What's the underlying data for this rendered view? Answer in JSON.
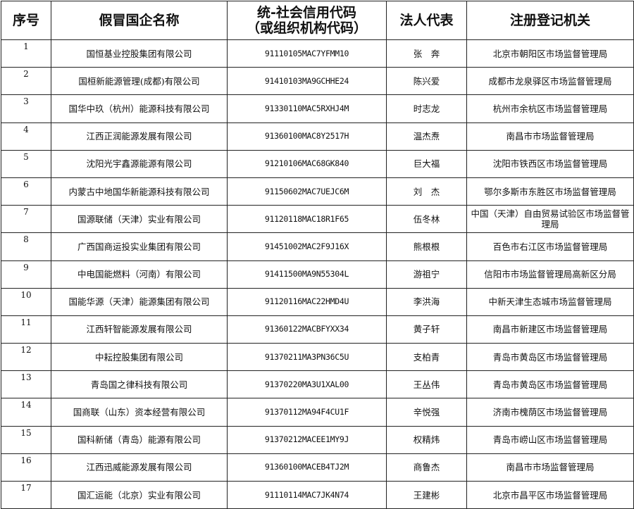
{
  "headers": {
    "seq": "序号",
    "name": "假冒国企名称",
    "code_line1": "统-社会信用代码",
    "code_line2": "（或组织机构代码）",
    "rep": "法人代表",
    "authority": "注册登记机关"
  },
  "rows": [
    {
      "no": "1",
      "name": "国恒基业控股集团有限公司",
      "code": "91110105MAC7YFMM10",
      "rep": "张　奔",
      "authority": "北京市朝阳区市场监督管理局"
    },
    {
      "no": "2",
      "name": "国桓新能源管理(成都)有限公司",
      "code": "91410103MA9GCHHE24",
      "rep": "陈兴爱",
      "authority": "成都市龙泉驿区市场监督管理局"
    },
    {
      "no": "3",
      "name": "国华中玖（杭州）能源科技有限公司",
      "code": "91330110MAC5RXHJ4M",
      "rep": "时志龙",
      "authority": "杭州市余杭区市场监督管理局"
    },
    {
      "no": "4",
      "name": "江西正润能源发展有限公司",
      "code": "91360100MAC8Y2517H",
      "rep": "温杰焘",
      "authority": "南昌市市场监督管理局"
    },
    {
      "no": "5",
      "name": "沈阳光宇鑫源能源有限公司",
      "code": "91210106MAC68GK840",
      "rep": "巨大福",
      "authority": "沈阳市铁西区市场监督管理局"
    },
    {
      "no": "6",
      "name": "内蒙古中地国华新能源科技有限公司",
      "code": "91150602MAC7UEJC6M",
      "rep": "刘　杰",
      "authority": "鄂尔多斯市东胜区市场监督管理局"
    },
    {
      "no": "7",
      "name": "国源联储（天津）实业有限公司",
      "code": "91120118MAC18R1F65",
      "rep": "伍冬林",
      "authority": "中国（天津）自由贸易试验区市场监督管理局"
    },
    {
      "no": "8",
      "name": "广西国商运投实业集团有限公司",
      "code": "91451002MAC2F9J16X",
      "rep": "熊根根",
      "authority": "百色市右江区市场监督管理局"
    },
    {
      "no": "9",
      "name": "中电国能燃料（河南）有限公司",
      "code": "91411500MA9N55304L",
      "rep": "游祖宁",
      "authority": "信阳市市场监督管理局高新区分局"
    },
    {
      "no": "10",
      "name": "国能华源（天津）能源集团有限公司",
      "code": "91120116MAC22HMD4U",
      "rep": "李洪海",
      "authority": "中新天津生态城市场监督管理局"
    },
    {
      "no": "11",
      "name": "江西轩智能源发展有限公司",
      "code": "91360122MACBFYXX34",
      "rep": "黄子轩",
      "authority": "南昌市新建区市场监督管理局"
    },
    {
      "no": "12",
      "name": "中耘控股集团有限公司",
      "code": "91370211MA3PN36C5U",
      "rep": "支柏青",
      "authority": "青岛市黄岛区市场监督管理局"
    },
    {
      "no": "13",
      "name": "青岛国之律科技有限公司",
      "code": "91370220MA3U1XAL00",
      "rep": "王丛伟",
      "authority": "青岛市黄岛区市场监督管理局"
    },
    {
      "no": "14",
      "name": "国商联（山东）资本经营有限公司",
      "code": "91370112MA94F4CU1F",
      "rep": "辛悦强",
      "authority": "济南市槐荫区市场监督管理局"
    },
    {
      "no": "15",
      "name": "国科新储（青岛）能源有限公司",
      "code": "91370212MACEE1MY9J",
      "rep": "权精炜",
      "authority": "青岛市崂山区市场监督管理局"
    },
    {
      "no": "16",
      "name": "江西迅威能源发展有限公司",
      "code": "91360100MACEB4TJ2M",
      "rep": "商鲁杰",
      "authority": "南昌市市场监督管理局"
    },
    {
      "no": "17",
      "name": "国汇运能（北京）实业有限公司",
      "code": "91110114MAC7JK4N74",
      "rep": "王建彬",
      "authority": "北京市昌平区市场监督管理局"
    }
  ]
}
